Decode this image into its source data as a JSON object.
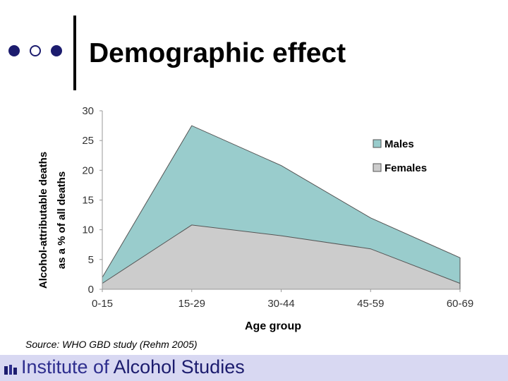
{
  "slide": {
    "title": "Demographic effect",
    "source_label": "Source:",
    "source_text": "WHO GBD study (Rehm 2005)"
  },
  "footer": {
    "part1": "Institute of",
    "part2": "Alcohol Studies",
    "bar_color": "#d8d8f2"
  },
  "chart_data": {
    "type": "area",
    "categories": [
      "0-15",
      "15-29",
      "30-44",
      "45-59",
      "60-69"
    ],
    "series": [
      {
        "name": "Males",
        "values": [
          2,
          27.5,
          20.8,
          12,
          5.3
        ],
        "color": "#99cccc"
      },
      {
        "name": "Females",
        "values": [
          1,
          10.8,
          9,
          6.8,
          1
        ],
        "color": "#cccccc"
      }
    ],
    "xlabel": "Age group",
    "ylabel_line1": "Alcohol-attributable deaths",
    "ylabel_line2": "as a % of all deaths",
    "ylim": [
      0,
      30
    ],
    "yticks": [
      "0",
      "5",
      "10",
      "15",
      "20",
      "25",
      "30"
    ],
    "grid": false,
    "legend_position": "right"
  }
}
